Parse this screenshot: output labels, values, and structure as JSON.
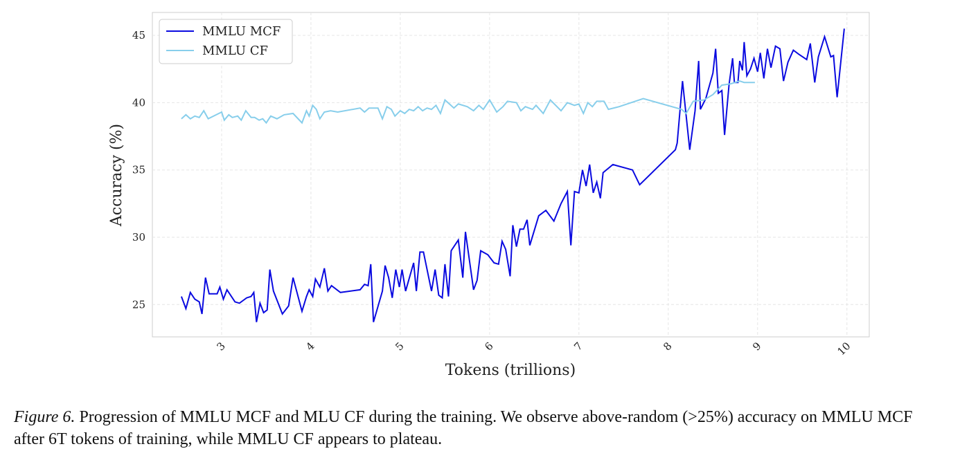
{
  "chart_data": {
    "type": "line",
    "xlabel": "Tokens (trillions)",
    "ylabel": "Accuracy (%)",
    "xlim": [
      2.225,
      10.25
    ],
    "ylim": [
      22.6,
      46.7
    ],
    "xticks": [
      3,
      4,
      5,
      6,
      7,
      8,
      9,
      10
    ],
    "yticks": [
      25,
      30,
      35,
      40,
      45
    ],
    "grid": true,
    "legend": "upper left",
    "series": [
      {
        "name": "MMLU MCF",
        "color": "#0a0ae0",
        "x": [
          2.55,
          2.6,
          2.65,
          2.7,
          2.75,
          2.78,
          2.82,
          2.86,
          2.95,
          2.98,
          3.02,
          3.06,
          3.15,
          3.2,
          3.28,
          3.33,
          3.36,
          3.39,
          3.43,
          3.47,
          3.51,
          3.54,
          3.58,
          3.68,
          3.75,
          3.8,
          3.9,
          3.95,
          3.98,
          4.02,
          4.05,
          4.1,
          4.15,
          4.19,
          4.23,
          4.33,
          4.55,
          4.6,
          4.64,
          4.67,
          4.7,
          4.8,
          4.83,
          4.87,
          4.91,
          4.95,
          4.99,
          5.02,
          5.06,
          5.15,
          5.18,
          5.22,
          5.26,
          5.35,
          5.39,
          5.43,
          5.47,
          5.5,
          5.54,
          5.57,
          5.65,
          5.7,
          5.73,
          5.82,
          5.86,
          5.9,
          5.98,
          6.05,
          6.1,
          6.14,
          6.18,
          6.23,
          6.26,
          6.3,
          6.34,
          6.38,
          6.42,
          6.45,
          6.55,
          6.63,
          6.72,
          6.8,
          6.87,
          6.91,
          6.95,
          7.0,
          7.04,
          7.08,
          7.12,
          7.16,
          7.2,
          7.24,
          7.27,
          7.38,
          7.6,
          7.68,
          8.08,
          8.1,
          8.16,
          8.24,
          8.3,
          8.34,
          8.36,
          8.42,
          8.5,
          8.53,
          8.56,
          8.6,
          8.63,
          8.68,
          8.72,
          8.74,
          8.78,
          8.8,
          8.83,
          8.85,
          8.88,
          8.92,
          8.96,
          9.0,
          9.03,
          9.07,
          9.11,
          9.15,
          9.2,
          9.25,
          9.29,
          9.34,
          9.4,
          9.46,
          9.55,
          9.59,
          9.64,
          9.68,
          9.75,
          9.82,
          9.85,
          9.89,
          9.97
        ],
        "values": [
          25.6,
          24.7,
          25.9,
          25.4,
          25.2,
          24.3,
          27.0,
          25.8,
          25.8,
          26.3,
          25.4,
          26.1,
          25.2,
          25.1,
          25.5,
          25.6,
          25.9,
          23.7,
          25.1,
          24.4,
          24.6,
          27.6,
          26.0,
          24.3,
          24.9,
          27.0,
          24.5,
          25.6,
          26.1,
          25.6,
          26.9,
          26.3,
          27.7,
          26.0,
          26.4,
          25.9,
          26.1,
          26.5,
          26.4,
          28.0,
          23.7,
          26.0,
          27.9,
          27.0,
          25.5,
          27.6,
          26.3,
          27.6,
          26.0,
          28.1,
          26.0,
          28.9,
          28.9,
          26.0,
          27.6,
          25.7,
          25.5,
          28.0,
          25.6,
          29.0,
          29.8,
          27.0,
          30.4,
          26.1,
          26.8,
          29.0,
          28.7,
          28.1,
          28.0,
          29.7,
          29.1,
          27.1,
          30.9,
          29.3,
          30.6,
          30.6,
          31.3,
          29.4,
          31.6,
          32.0,
          31.2,
          32.5,
          33.4,
          29.4,
          33.4,
          33.3,
          35.0,
          33.8,
          35.4,
          33.3,
          34.1,
          32.9,
          34.8,
          35.4,
          35.0,
          33.9,
          36.5,
          37.0,
          41.6,
          36.5,
          39.4,
          43.1,
          39.5,
          40.3,
          42.2,
          44.0,
          40.7,
          40.9,
          37.6,
          41.3,
          43.3,
          41.5,
          41.5,
          43.1,
          42.4,
          44.5,
          42.0,
          42.5,
          43.3,
          42.3,
          43.7,
          41.8,
          44.0,
          42.6,
          44.2,
          44.0,
          41.6,
          43.0,
          43.9,
          43.6,
          43.2,
          44.4,
          41.5,
          43.4,
          44.9,
          43.4,
          43.5,
          40.4,
          45.5
        ]
      },
      {
        "name": "MMLU CF",
        "color": "#87ceeb",
        "x": [
          2.55,
          2.6,
          2.65,
          2.7,
          2.75,
          2.8,
          2.85,
          3.0,
          3.03,
          3.08,
          3.12,
          3.18,
          3.22,
          3.27,
          3.33,
          3.37,
          3.42,
          3.46,
          3.5,
          3.55,
          3.62,
          3.7,
          3.8,
          3.9,
          3.95,
          3.98,
          4.02,
          4.06,
          4.1,
          4.15,
          4.22,
          4.3,
          4.55,
          4.6,
          4.65,
          4.75,
          4.8,
          4.85,
          4.9,
          4.94,
          5.0,
          5.05,
          5.1,
          5.15,
          5.2,
          5.25,
          5.3,
          5.35,
          5.4,
          5.45,
          5.5,
          5.55,
          5.6,
          5.65,
          5.75,
          5.82,
          5.88,
          5.93,
          6.0,
          6.08,
          6.15,
          6.2,
          6.3,
          6.35,
          6.4,
          6.48,
          6.52,
          6.6,
          6.68,
          6.8,
          6.87,
          6.95,
          7.0,
          7.05,
          7.1,
          7.15,
          7.2,
          7.28,
          7.33,
          7.45,
          7.72,
          8.15,
          8.2,
          8.28,
          8.4,
          8.5,
          8.6,
          8.7,
          8.8,
          8.85,
          8.97
        ],
        "values": [
          38.8,
          39.1,
          38.8,
          39.0,
          38.9,
          39.4,
          38.8,
          39.3,
          38.7,
          39.1,
          38.9,
          39.0,
          38.7,
          39.4,
          38.9,
          38.9,
          38.7,
          38.8,
          38.5,
          39.0,
          38.8,
          39.1,
          39.2,
          38.5,
          39.4,
          39.0,
          39.8,
          39.5,
          38.8,
          39.3,
          39.4,
          39.3,
          39.6,
          39.3,
          39.6,
          39.6,
          38.8,
          39.7,
          39.5,
          39.0,
          39.4,
          39.2,
          39.5,
          39.4,
          39.7,
          39.4,
          39.6,
          39.5,
          39.8,
          39.2,
          40.2,
          39.9,
          39.6,
          39.9,
          39.7,
          39.4,
          39.8,
          39.5,
          40.2,
          39.3,
          39.7,
          40.1,
          40.0,
          39.4,
          39.7,
          39.5,
          39.8,
          39.2,
          40.2,
          39.4,
          40.0,
          39.8,
          39.9,
          39.2,
          40.0,
          39.7,
          40.1,
          40.1,
          39.5,
          39.7,
          40.3,
          39.5,
          39.2,
          40.1,
          40.2,
          40.6,
          41.3,
          41.4,
          41.6,
          41.5,
          41.5
        ]
      }
    ]
  },
  "caption": {
    "label": "Figure 6.",
    "lines": [
      "Progression of MMLU MCF and MLU CF during the training. We observe above-random (>25%) accuracy on MMLU MCF",
      "after 6T tokens of training, while MMLU CF appears to plateau."
    ]
  }
}
